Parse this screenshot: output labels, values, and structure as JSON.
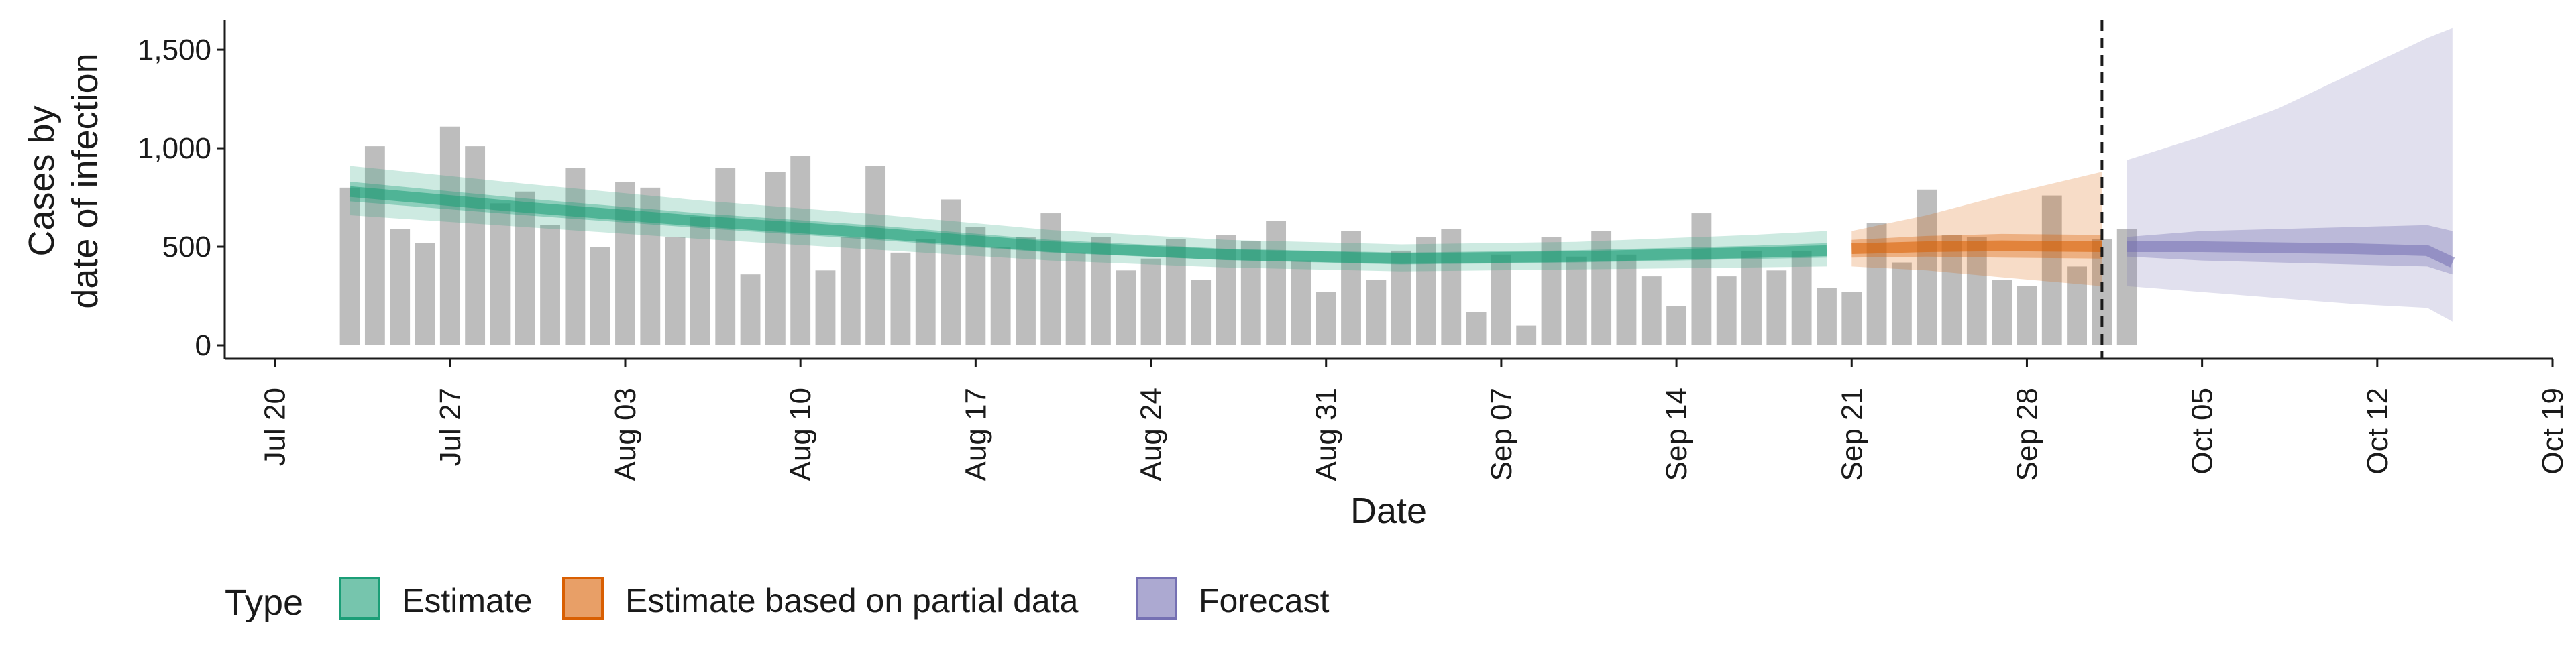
{
  "chart_data": {
    "type": "bar",
    "xlabel": "Date",
    "ylabel_lines": [
      "Cases by",
      "date of infection"
    ],
    "ylim": [
      0,
      1650
    ],
    "y_ticks": [
      0,
      500,
      1000,
      1500
    ],
    "y_tick_labels": [
      "0",
      "500",
      "1,000",
      "1,500"
    ],
    "x_ticks": [
      "2020-07-20",
      "2020-07-27",
      "2020-08-03",
      "2020-08-10",
      "2020-08-17",
      "2020-08-24",
      "2020-08-31",
      "2020-09-07",
      "2020-09-14",
      "2020-09-21",
      "2020-09-28",
      "2020-10-05",
      "2020-10-12",
      "2020-10-19"
    ],
    "x_tick_labels": [
      "Jul 20",
      "Jul 27",
      "Aug 03",
      "Aug 10",
      "Aug 17",
      "Aug 24",
      "Aug 31",
      "Sep 07",
      "Sep 14",
      "Sep 21",
      "Sep 28",
      "Oct 05",
      "Oct 12",
      "Oct 19"
    ],
    "x_range": [
      "2020-07-18",
      "2020-10-19"
    ],
    "report_date": "2020-10-01",
    "bars": {
      "start_date": "2020-07-23",
      "values": [
        800,
        1010,
        590,
        520,
        1110,
        1010,
        720,
        780,
        610,
        900,
        500,
        830,
        800,
        550,
        650,
        900,
        360,
        880,
        960,
        380,
        550,
        910,
        470,
        540,
        740,
        600,
        500,
        550,
        670,
        470,
        550,
        380,
        440,
        540,
        330,
        560,
        530,
        630,
        430,
        270,
        580,
        330,
        480,
        550,
        590,
        170,
        460,
        100,
        550,
        450,
        580,
        460,
        350,
        200,
        670,
        350,
        480,
        380,
        480,
        290,
        270,
        620,
        420,
        790,
        560,
        550,
        330,
        300,
        760,
        400,
        540,
        590
      ]
    },
    "series": [
      {
        "name": "Estimate",
        "color": "#1b9e77",
        "dates": [
          "2020-07-23",
          "2020-07-30",
          "2020-08-06",
          "2020-08-13",
          "2020-08-20",
          "2020-08-27",
          "2020-09-03",
          "2020-09-10",
          "2020-09-17",
          "2020-09-20"
        ],
        "median": [
          780,
          700,
          630,
          570,
          500,
          460,
          440,
          450,
          470,
          480
        ],
        "inner_lower": [
          730,
          660,
          595,
          535,
          470,
          432,
          410,
          420,
          438,
          445
        ],
        "inner_upper": [
          830,
          745,
          670,
          608,
          535,
          490,
          470,
          482,
          505,
          518
        ],
        "outer_lower": [
          660,
          600,
          540,
          485,
          430,
          395,
          375,
          385,
          395,
          400
        ],
        "outer_upper": [
          910,
          820,
          735,
          665,
          585,
          535,
          512,
          525,
          560,
          580
        ]
      },
      {
        "name": "Estimate based on partial data",
        "color": "#d95f02",
        "dates": [
          "2020-09-21",
          "2020-09-24",
          "2020-09-27",
          "2020-10-01"
        ],
        "median": [
          490,
          500,
          505,
          500
        ],
        "inner_lower": [
          445,
          450,
          445,
          440
        ],
        "inner_upper": [
          535,
          555,
          565,
          560
        ],
        "outer_lower": [
          400,
          380,
          345,
          300
        ],
        "outer_upper": [
          580,
          660,
          760,
          880
        ]
      },
      {
        "name": "Forecast",
        "color": "#7570b3",
        "dates": [
          "2020-10-02",
          "2020-10-05",
          "2020-10-08",
          "2020-10-11",
          "2020-10-14",
          "2020-10-15"
        ],
        "median": [
          500,
          500,
          495,
          490,
          480,
          420
        ],
        "inner_lower": [
          450,
          430,
          420,
          410,
          400,
          360
        ],
        "inner_upper": [
          550,
          580,
          590,
          600,
          610,
          580
        ],
        "outer_lower": [
          300,
          270,
          240,
          210,
          190,
          120
        ],
        "outer_upper": [
          940,
          1060,
          1200,
          1380,
          1560,
          1610
        ]
      }
    ],
    "grid": false,
    "legend": {
      "title": "Type",
      "position": "bottom",
      "items": [
        "Estimate",
        "Estimate based on partial data",
        "Forecast"
      ]
    }
  }
}
